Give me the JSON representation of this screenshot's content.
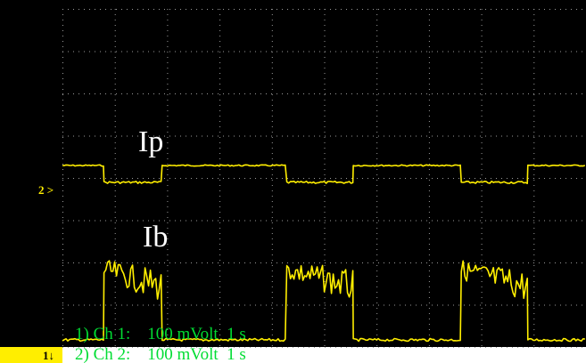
{
  "chart_data": {
    "type": "line",
    "title": "",
    "xlabel": "",
    "ylabel": "",
    "grid": true,
    "series": [
      {
        "name": "Ip",
        "channel": 1,
        "levels": {
          "high": 1,
          "low": 0
        },
        "intervals": [
          {
            "state": "high",
            "start": 0.0,
            "end": 0.5
          },
          {
            "state": "low",
            "start": 0.5,
            "end": 1.2
          },
          {
            "state": "high",
            "start": 1.2,
            "end": 2.7
          },
          {
            "state": "low",
            "start": 2.7,
            "end": 3.5
          },
          {
            "state": "high",
            "start": 3.5,
            "end": 4.8
          },
          {
            "state": "low",
            "start": 4.8,
            "end": 5.6
          },
          {
            "state": "high",
            "start": 5.6,
            "end": 6.3
          }
        ]
      },
      {
        "name": "Ib",
        "channel": 2,
        "levels": {
          "high": 1,
          "low": 0
        },
        "intervals": [
          {
            "state": "low",
            "start": 0.0,
            "end": 0.5
          },
          {
            "state": "high",
            "start": 0.5,
            "end": 1.2
          },
          {
            "state": "low",
            "start": 1.2,
            "end": 2.7
          },
          {
            "state": "high",
            "start": 2.7,
            "end": 3.5
          },
          {
            "state": "low",
            "start": 3.5,
            "end": 4.8
          },
          {
            "state": "high",
            "start": 4.8,
            "end": 5.6
          },
          {
            "state": "low",
            "start": 5.6,
            "end": 6.3
          }
        ]
      }
    ]
  },
  "labels": {
    "ip": "Ip",
    "ib": "Ib",
    "marker_ch2": "2 >",
    "marker_ch1": "1↓"
  },
  "info": {
    "line1": "1) Ch 1:    100 mVolt  1 s",
    "line2": "2) Ch 2:    100 mVolt  1 s"
  },
  "colors": {
    "background": "#000000",
    "trace": "#ffee00",
    "info_text": "#00dd33",
    "label_text": "#ffffff"
  }
}
